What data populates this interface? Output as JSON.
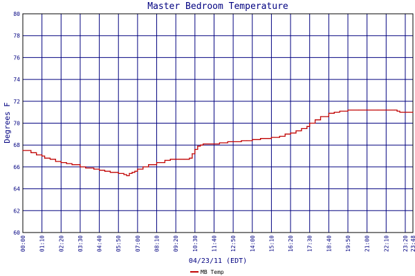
{
  "chart_data": {
    "type": "line",
    "title": "Master Bedroom Temperature",
    "xlabel": "04/23/11 (EDT)",
    "ylabel": "Degrees F",
    "ylim": [
      60,
      80
    ],
    "yticks": [
      60,
      62,
      64,
      66,
      68,
      70,
      72,
      74,
      76,
      78,
      80
    ],
    "xlim": [
      "00:00",
      "23:48"
    ],
    "xtick_labels": [
      "00:00",
      "01:10",
      "02:20",
      "03:30",
      "04:40",
      "05:50",
      "07:00",
      "08:10",
      "09:20",
      "10:30",
      "11:40",
      "12:50",
      "14:00",
      "15:10",
      "16:20",
      "17:30",
      "18:40",
      "19:50",
      "21:00",
      "22:10",
      "23:20",
      "23:48"
    ],
    "grid": true,
    "legend_position": "bottom-left",
    "colors": {
      "line": "#c00000",
      "grid": "#00007f",
      "axis": "#000000",
      "text": "#000080"
    },
    "series": [
      {
        "name": "MB Temp",
        "x": [
          "00:00",
          "00:30",
          "00:50",
          "01:10",
          "01:20",
          "01:40",
          "02:00",
          "02:20",
          "02:40",
          "03:00",
          "03:30",
          "03:50",
          "04:20",
          "04:40",
          "05:00",
          "05:20",
          "05:50",
          "06:10",
          "06:20",
          "06:30",
          "06:40",
          "06:50",
          "07:00",
          "07:20",
          "07:40",
          "08:10",
          "08:40",
          "09:00",
          "09:20",
          "09:50",
          "10:10",
          "10:20",
          "10:30",
          "10:40",
          "10:50",
          "11:00",
          "11:40",
          "12:00",
          "12:30",
          "12:50",
          "13:20",
          "13:40",
          "14:00",
          "14:30",
          "15:10",
          "15:40",
          "16:00",
          "16:20",
          "16:40",
          "17:00",
          "17:20",
          "17:30",
          "17:50",
          "18:10",
          "18:40",
          "19:00",
          "19:20",
          "19:50",
          "20:30",
          "21:00",
          "21:40",
          "22:10",
          "22:40",
          "22:50",
          "23:00",
          "23:20",
          "23:48"
        ],
        "y": [
          67.5,
          67.3,
          67.1,
          67.0,
          66.8,
          66.7,
          66.5,
          66.4,
          66.3,
          66.2,
          66.0,
          65.9,
          65.8,
          65.7,
          65.6,
          65.5,
          65.4,
          65.3,
          65.2,
          65.4,
          65.5,
          65.6,
          65.8,
          66.0,
          66.2,
          66.4,
          66.6,
          66.7,
          66.7,
          66.7,
          66.8,
          67.2,
          67.6,
          67.9,
          68.0,
          68.1,
          68.1,
          68.2,
          68.3,
          68.3,
          68.4,
          68.4,
          68.5,
          68.6,
          68.7,
          68.8,
          69.0,
          69.1,
          69.3,
          69.5,
          69.7,
          70.0,
          70.3,
          70.6,
          70.9,
          71.0,
          71.1,
          71.2,
          71.2,
          71.2,
          71.2,
          71.2,
          71.2,
          71.1,
          71.0,
          71.0,
          71.0
        ]
      }
    ]
  }
}
